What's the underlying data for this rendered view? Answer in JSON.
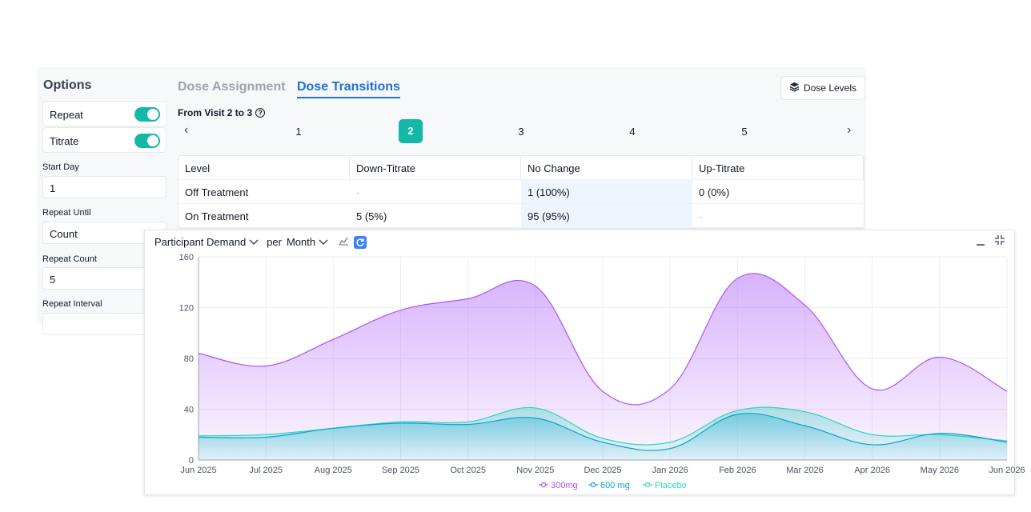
{
  "options": {
    "title": "Options",
    "toggles": [
      {
        "label": "Repeat",
        "on": true
      },
      {
        "label": "Titrate",
        "on": true
      }
    ],
    "fields": [
      {
        "label": "Start Day",
        "value": "1"
      },
      {
        "label": "Repeat Until",
        "value": "Count"
      },
      {
        "label": "Repeat Count",
        "value": "5"
      },
      {
        "label": "Repeat Interval",
        "value": ""
      }
    ]
  },
  "tabs": {
    "dose_assignment": "Dose Assignment",
    "dose_transitions": "Dose Transitions",
    "active": "Dose Transitions"
  },
  "dose_levels_button": {
    "label": "Dose Levels",
    "icon": "layers-icon"
  },
  "visit": {
    "label": "From Visit 2 to 3",
    "help_icon": "help-circle-icon"
  },
  "pager": {
    "pages": [
      "1",
      "2",
      "3",
      "4",
      "5"
    ],
    "active": "2"
  },
  "transitions_table": {
    "headers": [
      "Level",
      "Down-Titrate",
      "No Change",
      "Up-Titrate"
    ],
    "rows": [
      [
        "Off Treatment",
        "-",
        "1 (100%)",
        "0 (0%)"
      ],
      [
        "On Treatment",
        "5 (5%)",
        "95 (95%)",
        "-"
      ]
    ]
  },
  "chart_toolbar": {
    "metric": "Participant Demand",
    "per_label": "per",
    "period": "Month"
  },
  "colors": {
    "accent": "#14b8a6",
    "tab_active": "#1d6fd8",
    "series_300mg": "#a855f7",
    "series_600mg": "#06a6c9",
    "series_placebo": "#2dd4bf"
  },
  "chart_data": {
    "type": "area",
    "x": [
      "Jun 2025",
      "Jul 2025",
      "Aug 2025",
      "Sep 2025",
      "Oct 2025",
      "Nov 2025",
      "Dec 2025",
      "Jan 2026",
      "Feb 2026",
      "Mar 2026",
      "Apr 2026",
      "May 2026",
      "Jun 2026"
    ],
    "ylim": [
      0,
      160
    ],
    "yticks": [
      0,
      40,
      80,
      120,
      160
    ],
    "series": [
      {
        "name": "300mg",
        "values": [
          84,
          74,
          95,
          118,
          127,
          137,
          54,
          56,
          143,
          122,
          56,
          81,
          54
        ]
      },
      {
        "name": "600 mg",
        "values": [
          18,
          18,
          25,
          29,
          28,
          33,
          14,
          9,
          36,
          27,
          12,
          21,
          14
        ]
      },
      {
        "name": "Placebo",
        "values": [
          19,
          20,
          25,
          30,
          30,
          41,
          17,
          14,
          39,
          38,
          20,
          20,
          15
        ]
      }
    ],
    "grid": true,
    "legend": "bottom-center"
  }
}
